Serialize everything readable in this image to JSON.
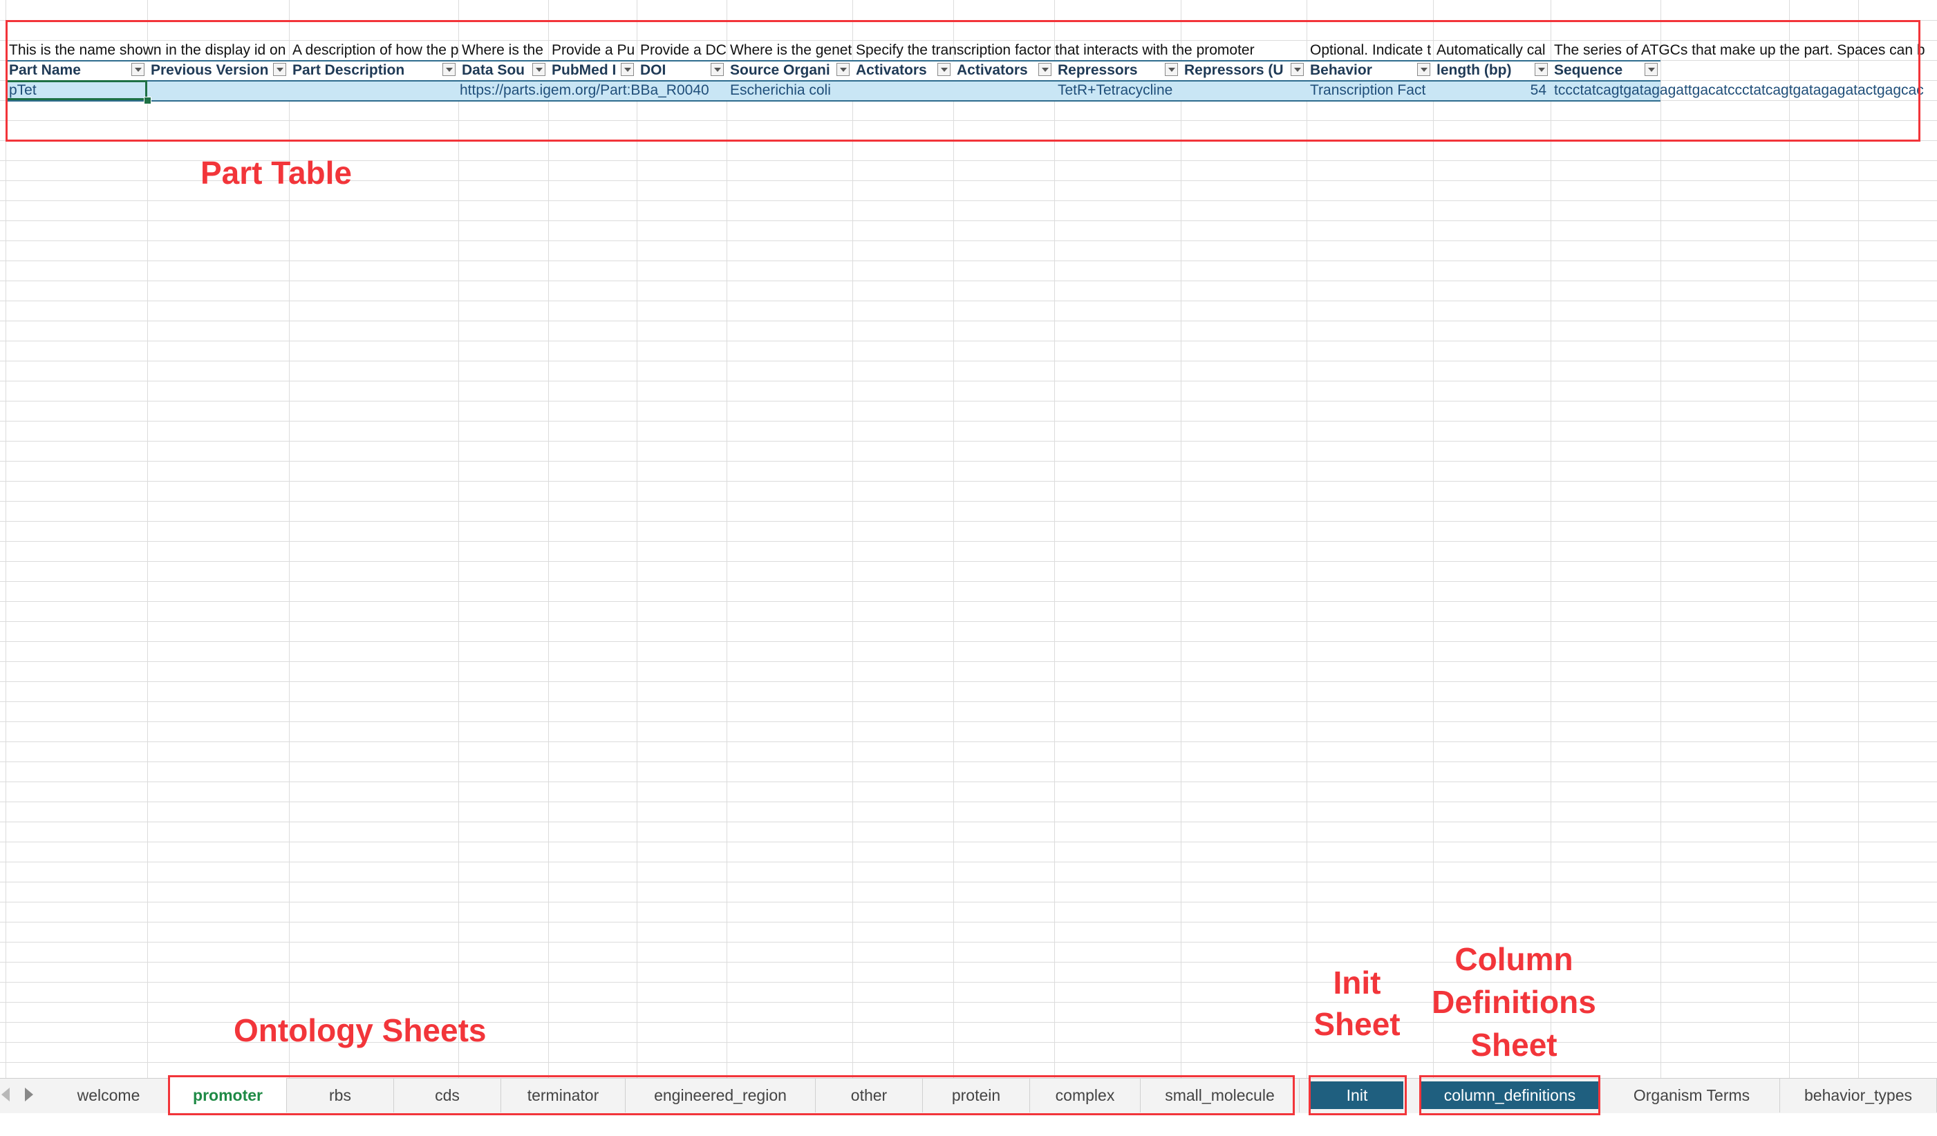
{
  "table": {
    "columns": [
      {
        "desc": "This is the name shown in the display id on",
        "header": "Part Name",
        "value": "pTet"
      },
      {
        "desc": "",
        "header": "Previous Version",
        "value": ""
      },
      {
        "desc": "A description of how the p",
        "header": "Part Description",
        "value": ""
      },
      {
        "desc": "Where is the",
        "header": "Data Sou",
        "value": "https://parts.igem.org/Part:BBa_R0040"
      },
      {
        "desc": "Provide a Pu",
        "header": "PubMed I",
        "value": ""
      },
      {
        "desc": "Provide a DC",
        "header": "DOI",
        "value": ""
      },
      {
        "desc": "Where is the genet",
        "header": "Source Organi",
        "value": "Escherichia coli"
      },
      {
        "desc": "Specify the transcription factor that interacts with the promoter",
        "header": "Activators",
        "value": ""
      },
      {
        "desc": "",
        "header": "Activators",
        "value": ""
      },
      {
        "desc": "",
        "header": "Repressors",
        "value": "TetR+Tetracycline"
      },
      {
        "desc": "",
        "header": "Repressors (U",
        "value": ""
      },
      {
        "desc": "Optional. Indicate t",
        "header": "Behavior",
        "value": "Transcription Fact"
      },
      {
        "desc": "Automatically cal",
        "header": "length (bp)",
        "value": "54"
      },
      {
        "desc": "The series of ATGCs that make up the part. Spaces can b",
        "header": "Sequence",
        "value": "tccctatcagtgatagagattgacatccctatcagtgatagagatactgagcac"
      }
    ]
  },
  "annotations": {
    "part_table": "Part Table",
    "ontology_sheets": "Ontology Sheets",
    "init_sheet_line1": "Init",
    "init_sheet_line2": "Sheet",
    "coldef_line1": "Column",
    "coldef_line2": "Definitions",
    "coldef_line3": "Sheet"
  },
  "tabs": [
    "welcome",
    "promoter",
    "rbs",
    "cds",
    "terminator",
    "engineered_region",
    "other",
    "protein",
    "complex",
    "small_molecule",
    "Init",
    "column_definitions",
    "Organism Terms",
    "behavior_types"
  ],
  "active_tab": "promoter",
  "colors": {
    "annotation": "#f2353a",
    "active_tab_text": "#1e8a45",
    "highlight_tab": "#1f5f7f",
    "row_fill": "#c9e6f5"
  }
}
